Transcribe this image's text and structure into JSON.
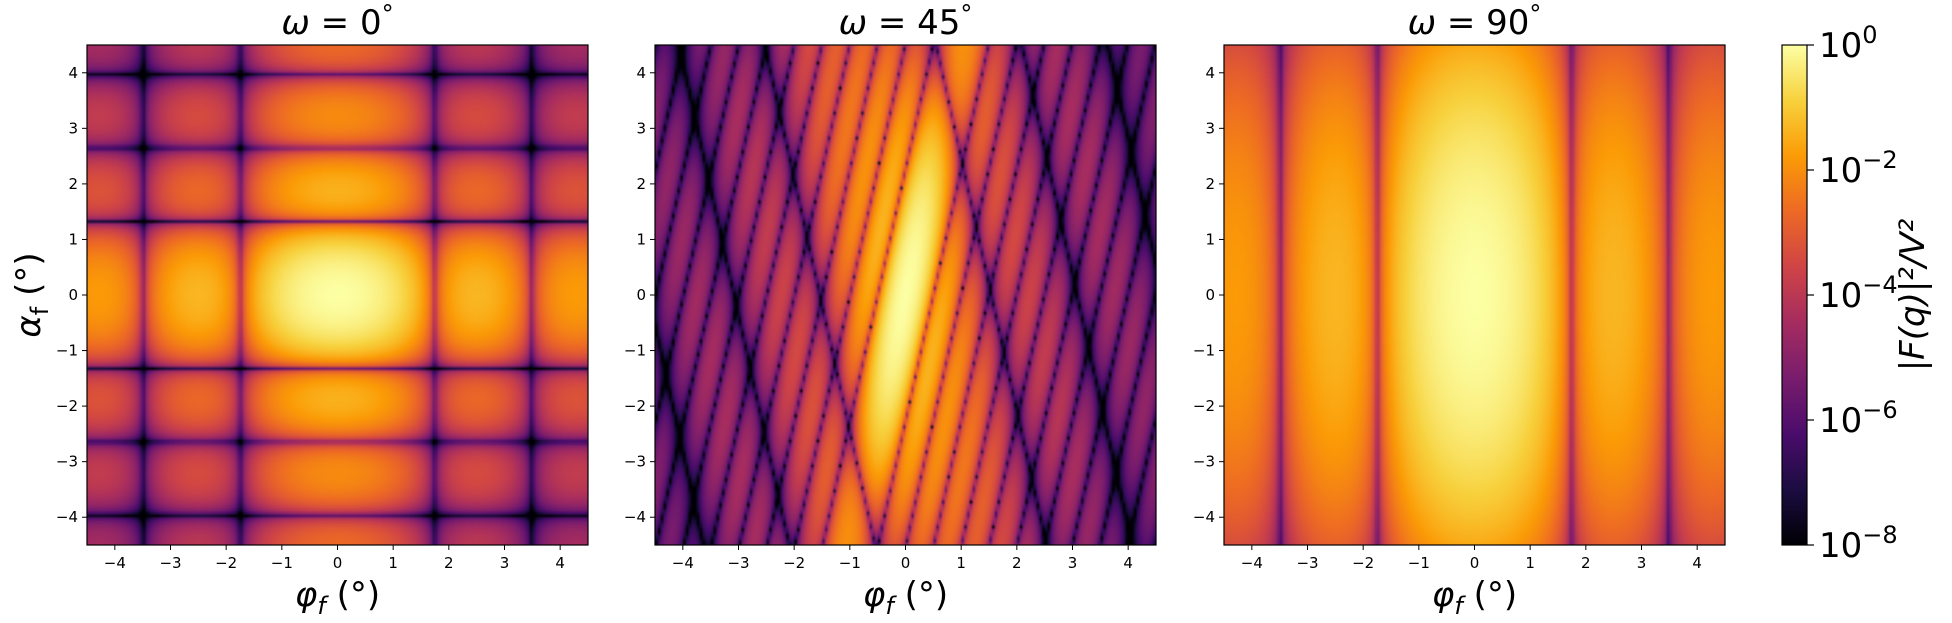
{
  "chart_data": [
    {
      "type": "heatmap",
      "title": "ω = 0°",
      "title_parts": {
        "sym": "ω",
        "eq": " = 0",
        "deg": "°"
      },
      "xlabel": {
        "sym": "φ",
        "sub": "f",
        "unit": " (°)"
      },
      "ylabel": {
        "sym": "α",
        "sub": "f",
        "unit": " (°)"
      },
      "xlim": [
        -4.5,
        4.5
      ],
      "ylim": [
        -4.5,
        4.5
      ],
      "xticks": [
        "−4",
        "−3",
        "−2",
        "−1",
        "0",
        "1",
        "2",
        "3",
        "4"
      ],
      "yticks": [
        "−4",
        "−3",
        "−2",
        "−1",
        "0",
        "1",
        "2",
        "3",
        "4"
      ],
      "omega_deg": 0,
      "colormap": "inferno",
      "scale": "log"
    },
    {
      "type": "heatmap",
      "title": "ω = 45°",
      "title_parts": {
        "sym": "ω",
        "eq": " = 45",
        "deg": "°"
      },
      "xlabel": {
        "sym": "φ",
        "sub": "f",
        "unit": " (°)"
      },
      "xlim": [
        -4.5,
        4.5
      ],
      "ylim": [
        -4.5,
        4.5
      ],
      "xticks": [
        "−4",
        "−3",
        "−2",
        "−1",
        "0",
        "1",
        "2",
        "3",
        "4"
      ],
      "yticks": [
        "−4",
        "−3",
        "−2",
        "−1",
        "0",
        "1",
        "2",
        "3",
        "4"
      ],
      "omega_deg": 45,
      "colormap": "inferno",
      "scale": "log"
    },
    {
      "type": "heatmap",
      "title": "ω = 90°",
      "title_parts": {
        "sym": "ω",
        "eq": " = 90",
        "deg": "°"
      },
      "xlabel": {
        "sym": "φ",
        "sub": "f",
        "unit": " (°)"
      },
      "xlim": [
        -4.5,
        4.5
      ],
      "ylim": [
        -4.5,
        4.5
      ],
      "xticks": [
        "−4",
        "−3",
        "−2",
        "−1",
        "0",
        "1",
        "2",
        "3",
        "4"
      ],
      "yticks": [
        "−4",
        "−3",
        "−2",
        "−1",
        "0",
        "1",
        "2",
        "3",
        "4"
      ],
      "omega_deg": 90,
      "colormap": "inferno",
      "scale": "log"
    }
  ],
  "colorbar": {
    "label": "|F(q)|²/V²",
    "ticks": [
      {
        "base": "10",
        "exp": "0"
      },
      {
        "base": "10",
        "exp": "−2"
      },
      {
        "base": "10",
        "exp": "−4"
      },
      {
        "base": "10",
        "exp": "−6"
      },
      {
        "base": "10",
        "exp": "−8"
      }
    ],
    "range_log10": [
      -8,
      0
    ],
    "colors": [
      "#000004",
      "#1b0c41",
      "#4a0c6b",
      "#781c6d",
      "#a52c60",
      "#cf4446",
      "#ed6925",
      "#fb9b06",
      "#f7d13d",
      "#fcffa4"
    ]
  }
}
